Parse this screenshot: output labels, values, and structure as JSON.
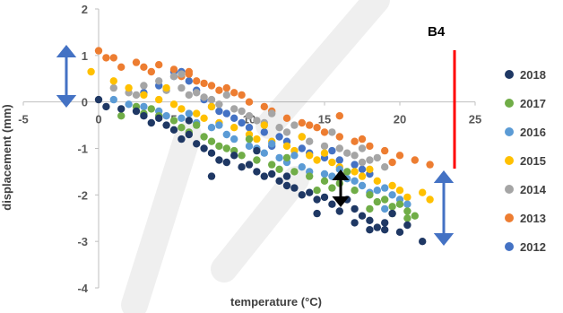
{
  "chart_data": {
    "type": "scatter",
    "title": "",
    "xlabel": "temperature (°C)",
    "ylabel": "displacement (mm)",
    "xlim": [
      -5,
      25
    ],
    "ylim": [
      -4,
      2
    ],
    "x_ticks": [
      -5,
      0,
      5,
      10,
      15,
      20,
      25
    ],
    "y_ticks": [
      2,
      1,
      0,
      -1,
      -2,
      -3,
      -4
    ],
    "x_tick_labels": [
      "-5",
      "0",
      "5",
      "10",
      "15",
      "20",
      "25"
    ],
    "y_tick_labels": [
      "2",
      "1",
      "0",
      "-1",
      "-2",
      "-3",
      "-4"
    ],
    "grid": false,
    "legend_position": "right",
    "annotation": "B4",
    "series": [
      {
        "name": "2018",
        "color": "#1f3864",
        "points": [
          [
            0,
            0.05
          ],
          [
            0.5,
            -0.1
          ],
          [
            1.5,
            -0.15
          ],
          [
            2.5,
            -0.2
          ],
          [
            3,
            -0.3
          ],
          [
            4,
            -0.35
          ],
          [
            4.5,
            -0.5
          ],
          [
            5,
            -0.6
          ],
          [
            5.5,
            -0.8
          ],
          [
            6,
            -0.7
          ],
          [
            6.5,
            -0.9
          ],
          [
            7,
            -1.0
          ],
          [
            7.5,
            -1.1
          ],
          [
            8,
            -1.25
          ],
          [
            8.5,
            -1.3
          ],
          [
            9,
            -1.15
          ],
          [
            9.5,
            -1.4
          ],
          [
            10,
            -1.35
          ],
          [
            10.5,
            -1.5
          ],
          [
            11,
            -1.6
          ],
          [
            11.5,
            -1.55
          ],
          [
            12,
            -1.7
          ],
          [
            12.5,
            -1.8
          ],
          [
            13,
            -1.85
          ],
          [
            13.5,
            -2.0
          ],
          [
            14,
            -1.95
          ],
          [
            14.5,
            -2.1
          ],
          [
            15,
            -2.05
          ],
          [
            15.5,
            -2.2
          ],
          [
            16,
            -2.35
          ],
          [
            16.5,
            -2.1
          ],
          [
            17,
            -2.3
          ],
          [
            17.5,
            -2.45
          ],
          [
            18,
            -2.55
          ],
          [
            18.5,
            -2.7
          ],
          [
            19,
            -2.6
          ],
          [
            19.5,
            -2.4
          ],
          [
            20,
            -2.8
          ],
          [
            20.5,
            -2.65
          ],
          [
            21.5,
            -3.0
          ],
          [
            7.5,
            -1.6
          ],
          [
            10.5,
            -1.05
          ],
          [
            12.5,
            -1.6
          ],
          [
            14.5,
            -2.4
          ],
          [
            17,
            -2.6
          ],
          [
            18,
            -2.75
          ],
          [
            19,
            -2.75
          ],
          [
            6,
            -0.4
          ],
          [
            3.5,
            -0.45
          ]
        ]
      },
      {
        "name": "2017",
        "color": "#70ad47",
        "points": [
          [
            1.5,
            -0.3
          ],
          [
            2.5,
            -0.1
          ],
          [
            3,
            -0.25
          ],
          [
            4,
            -0.3
          ],
          [
            5,
            -0.4
          ],
          [
            5.5,
            -0.55
          ],
          [
            6,
            -0.65
          ],
          [
            7,
            -0.75
          ],
          [
            8,
            -0.95
          ],
          [
            8.5,
            -1.0
          ],
          [
            9,
            -1.05
          ],
          [
            9.5,
            -1.15
          ],
          [
            10.5,
            -1.25
          ],
          [
            11.5,
            -1.35
          ],
          [
            12,
            -1.45
          ],
          [
            13,
            -1.5
          ],
          [
            14,
            -1.6
          ],
          [
            15,
            -1.7
          ],
          [
            15.5,
            -1.85
          ],
          [
            16,
            -1.75
          ],
          [
            17,
            -1.9
          ],
          [
            18,
            -2.0
          ],
          [
            18.5,
            -2.15
          ],
          [
            19,
            -2.1
          ],
          [
            19.5,
            -2.25
          ],
          [
            20,
            -2.2
          ],
          [
            20.5,
            -2.35
          ],
          [
            21,
            -2.45
          ],
          [
            3.5,
            -0.15
          ],
          [
            6.5,
            -0.5
          ],
          [
            7.5,
            -0.85
          ],
          [
            10,
            -0.8
          ],
          [
            12.5,
            -1.2
          ],
          [
            14.5,
            -1.9
          ],
          [
            16.5,
            -1.5
          ],
          [
            18,
            -2.3
          ],
          [
            19.5,
            -2.4
          ],
          [
            20.5,
            -2.5
          ]
        ]
      },
      {
        "name": "2016",
        "color": "#5b9bd5",
        "points": [
          [
            1,
            0.05
          ],
          [
            2,
            -0.05
          ],
          [
            3,
            -0.1
          ],
          [
            4,
            -0.2
          ],
          [
            4.5,
            -0.3
          ],
          [
            5.5,
            -0.35
          ],
          [
            6.5,
            -0.45
          ],
          [
            7.5,
            -0.55
          ],
          [
            8.5,
            -0.7
          ],
          [
            9,
            -0.8
          ],
          [
            10,
            -0.95
          ],
          [
            10.5,
            -1.0
          ],
          [
            11,
            -1.1
          ],
          [
            12,
            -1.2
          ],
          [
            12.5,
            -1.3
          ],
          [
            13.5,
            -1.4
          ],
          [
            14,
            -1.5
          ],
          [
            15,
            -1.55
          ],
          [
            15.5,
            -1.6
          ],
          [
            16.5,
            -1.65
          ],
          [
            17,
            -1.7
          ],
          [
            17.5,
            -1.8
          ],
          [
            18.5,
            -1.9
          ],
          [
            19,
            -1.85
          ],
          [
            19.5,
            -2.0
          ],
          [
            20,
            -2.1
          ],
          [
            20.5,
            -2.2
          ],
          [
            6,
            -0.25
          ],
          [
            8,
            -0.5
          ],
          [
            11.5,
            -0.9
          ],
          [
            13,
            -1.15
          ],
          [
            16,
            -1.45
          ],
          [
            18,
            -1.95
          ],
          [
            19,
            -2.3
          ]
        ]
      },
      {
        "name": "2015",
        "color": "#ffc000",
        "points": [
          [
            -0.5,
            0.65
          ],
          [
            1,
            0.45
          ],
          [
            2,
            0.3
          ],
          [
            3,
            0.15
          ],
          [
            4,
            0.05
          ],
          [
            5,
            -0.05
          ],
          [
            5.5,
            -0.15
          ],
          [
            6.5,
            -0.25
          ],
          [
            7,
            -0.35
          ],
          [
            8,
            -0.45
          ],
          [
            9,
            -0.55
          ],
          [
            10,
            -0.7
          ],
          [
            10.5,
            -0.8
          ],
          [
            11.5,
            -0.85
          ],
          [
            12.5,
            -0.95
          ],
          [
            13,
            -1.05
          ],
          [
            14,
            -1.15
          ],
          [
            14.5,
            -1.25
          ],
          [
            15.5,
            -1.3
          ],
          [
            16,
            -1.4
          ],
          [
            17,
            -1.5
          ],
          [
            17.5,
            -1.6
          ],
          [
            18.5,
            -1.7
          ],
          [
            19.5,
            -1.8
          ],
          [
            20,
            -1.9
          ],
          [
            21.5,
            -1.95
          ],
          [
            22,
            -2.1
          ],
          [
            4.5,
            0.3
          ],
          [
            7.5,
            -0.1
          ],
          [
            11,
            -0.5
          ],
          [
            13.5,
            -0.75
          ],
          [
            15,
            -1.1
          ],
          [
            18,
            -1.45
          ],
          [
            20.5,
            -2.05
          ]
        ]
      },
      {
        "name": "2014",
        "color": "#a5a5a5",
        "points": [
          [
            1,
            0.3
          ],
          [
            2,
            0.2
          ],
          [
            2.5,
            0.15
          ],
          [
            3,
            0.35
          ],
          [
            4,
            0.45
          ],
          [
            4.5,
            0.25
          ],
          [
            5,
            0.55
          ],
          [
            5.5,
            0.3
          ],
          [
            6,
            0.15
          ],
          [
            6.5,
            0.2
          ],
          [
            7,
            0.1
          ],
          [
            7.5,
            0.05
          ],
          [
            8,
            -0.05
          ],
          [
            9,
            -0.15
          ],
          [
            9.5,
            -0.2
          ],
          [
            10,
            -0.3
          ],
          [
            10.5,
            -0.4
          ],
          [
            11,
            -0.45
          ],
          [
            12,
            -0.55
          ],
          [
            12.5,
            -0.65
          ],
          [
            13.5,
            -0.75
          ],
          [
            14,
            -0.85
          ],
          [
            15,
            -0.95
          ],
          [
            16,
            -1.0
          ],
          [
            16.5,
            -1.1
          ],
          [
            17,
            -1.15
          ],
          [
            17.5,
            -1.3
          ],
          [
            18,
            -1.25
          ],
          [
            19,
            -1.4
          ],
          [
            5.5,
            0.6
          ],
          [
            8.5,
            0.15
          ],
          [
            11.5,
            -0.25
          ],
          [
            13,
            -0.5
          ],
          [
            15.5,
            -0.65
          ],
          [
            17.5,
            -1.0
          ],
          [
            18.5,
            -1.2
          ]
        ]
      },
      {
        "name": "2013",
        "color": "#ed7d31",
        "points": [
          [
            0,
            1.1
          ],
          [
            0.5,
            0.95
          ],
          [
            1,
            0.95
          ],
          [
            1.5,
            0.75
          ],
          [
            2.5,
            0.85
          ],
          [
            3,
            0.75
          ],
          [
            3.5,
            0.65
          ],
          [
            4,
            0.8
          ],
          [
            5,
            0.7
          ],
          [
            5.5,
            0.55
          ],
          [
            6,
            0.6
          ],
          [
            6.5,
            0.45
          ],
          [
            7,
            0.4
          ],
          [
            7.5,
            0.35
          ],
          [
            8,
            0.25
          ],
          [
            9,
            0.2
          ],
          [
            9.5,
            0.15
          ],
          [
            10,
            0.0
          ],
          [
            11,
            -0.1
          ],
          [
            11.5,
            -0.2
          ],
          [
            12.5,
            -0.35
          ],
          [
            13.5,
            -0.45
          ],
          [
            14.5,
            -0.55
          ],
          [
            15,
            -0.65
          ],
          [
            16,
            -0.75
          ],
          [
            17,
            -0.85
          ],
          [
            18,
            -0.95
          ],
          [
            19,
            -1.05
          ],
          [
            20,
            -1.15
          ],
          [
            21,
            -1.25
          ],
          [
            22,
            -1.35
          ],
          [
            6,
            0.65
          ],
          [
            8.5,
            0.3
          ],
          [
            14,
            -0.5
          ],
          [
            16,
            -0.3
          ],
          [
            17.5,
            -0.8
          ],
          [
            19.5,
            -1.3
          ]
        ]
      },
      {
        "name": "2012",
        "color": "#4472c4",
        "points": [
          [
            3,
            0.2
          ],
          [
            4,
            0.35
          ],
          [
            5,
            0.55
          ],
          [
            5.5,
            0.65
          ],
          [
            6,
            0.45
          ],
          [
            6.5,
            0.25
          ],
          [
            7,
            0.05
          ],
          [
            7.5,
            -0.1
          ],
          [
            8,
            -0.2
          ],
          [
            9,
            -0.35
          ],
          [
            9.5,
            -0.45
          ],
          [
            10,
            -0.55
          ],
          [
            11,
            -0.65
          ],
          [
            12,
            -0.75
          ],
          [
            12.5,
            -0.85
          ],
          [
            13.5,
            -1.0
          ],
          [
            14,
            -1.1
          ],
          [
            15,
            -1.2
          ],
          [
            16,
            -1.25
          ],
          [
            17,
            -1.35
          ],
          [
            17.5,
            -1.45
          ],
          [
            18,
            -1.55
          ],
          [
            5,
            0.65
          ],
          [
            8.5,
            -0.25
          ],
          [
            11.5,
            -0.95
          ],
          [
            15.5,
            -1.05
          ]
        ]
      }
    ]
  }
}
